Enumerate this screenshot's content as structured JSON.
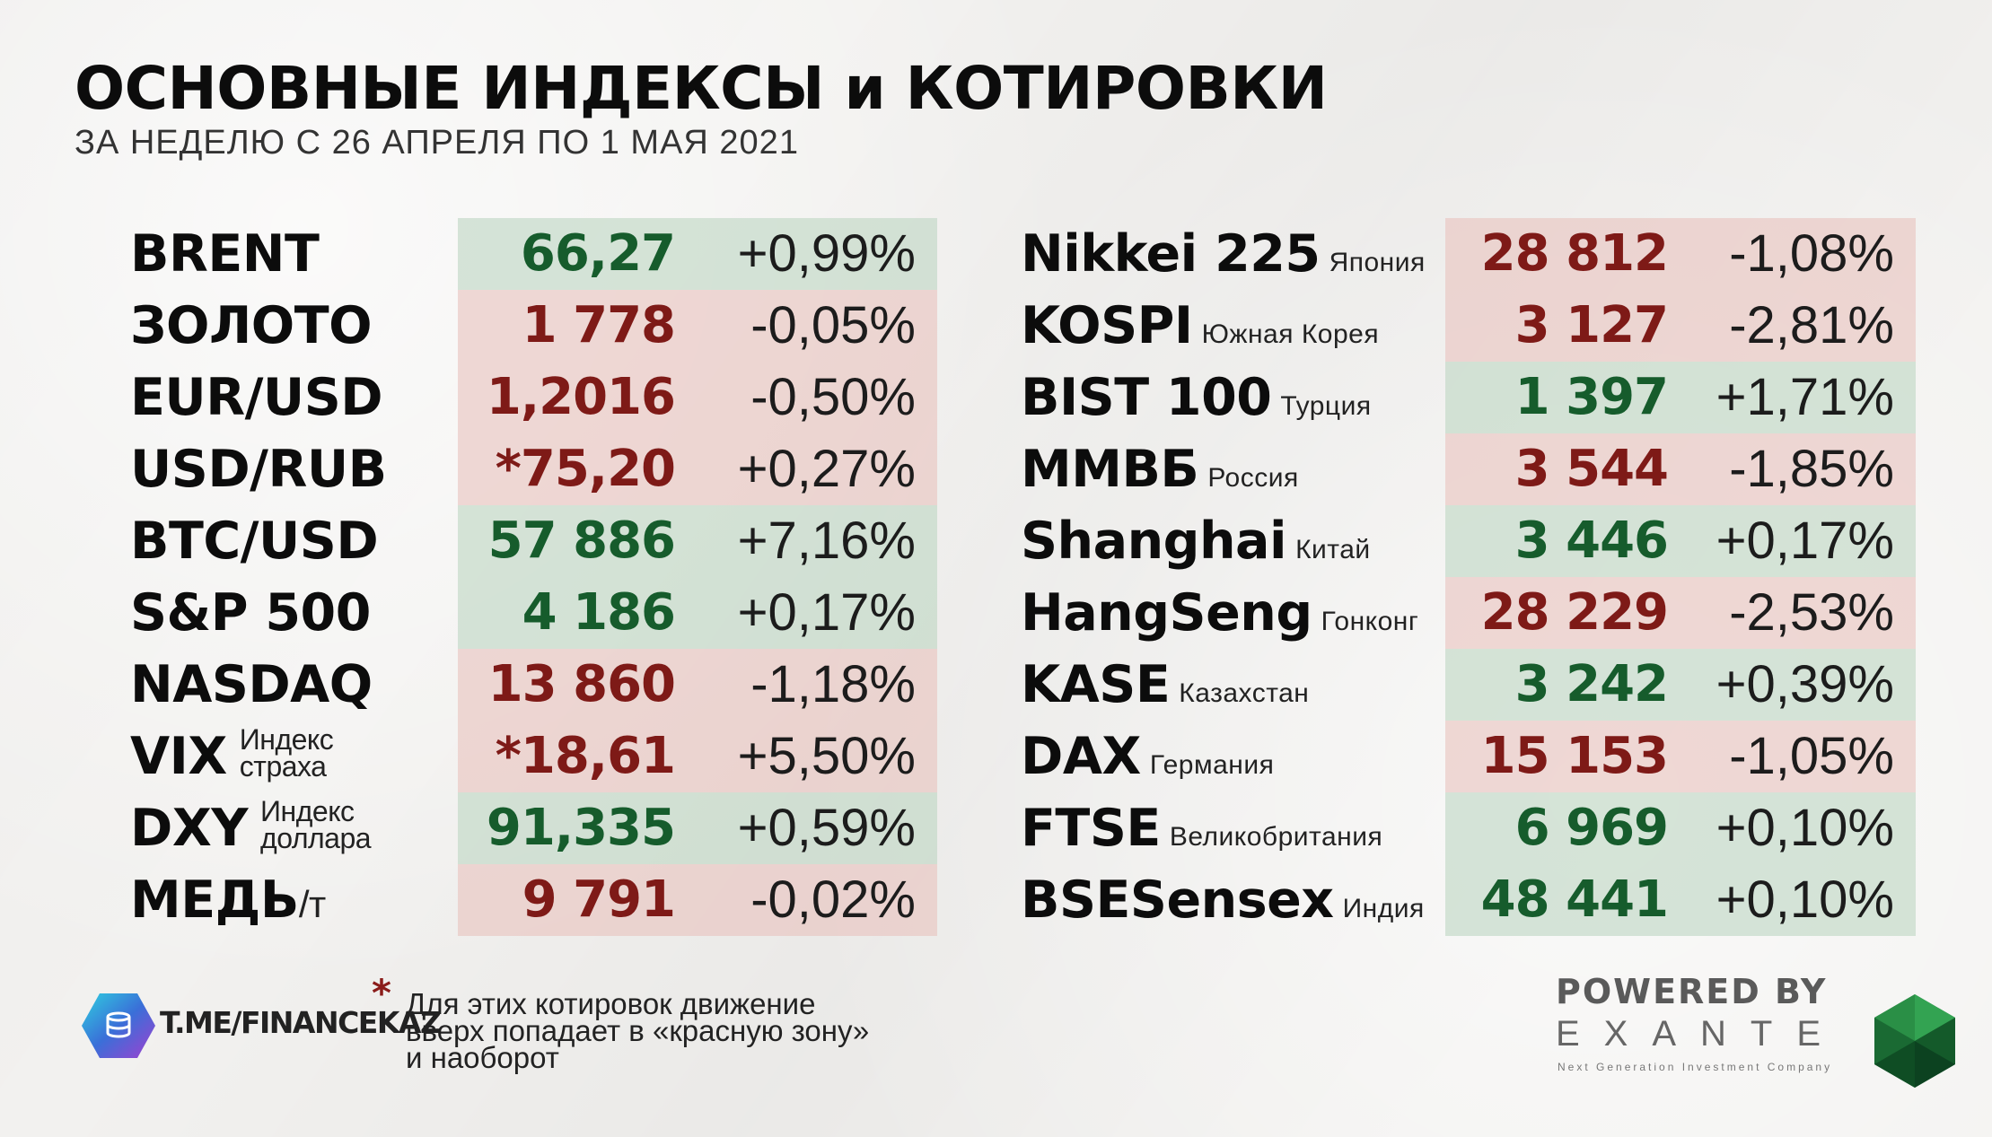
{
  "header": {
    "title": "ОСНОВНЫЕ ИНДЕКСЫ и КОТИРОВКИ",
    "subtitle": "ЗА НЕДЕЛЮ С 26 АПРЕЛЯ ПО 1 МАЯ 2021"
  },
  "colors": {
    "green_text": "#165c2c",
    "red_text": "#7e1a17",
    "green_bg": "#bed6c4",
    "red_bg": "#e9c4be"
  },
  "left": [
    {
      "name": "BRENT",
      "value": "66,27",
      "change": "+0,99%",
      "zone": "green"
    },
    {
      "name": "ЗОЛОТО",
      "value": "1 778",
      "change": "-0,05%",
      "zone": "red"
    },
    {
      "name": "EUR/USD",
      "value": "1,2016",
      "change": "-0,50%",
      "zone": "red"
    },
    {
      "name": "USD/RUB",
      "value": "*75,20",
      "change": "+0,27%",
      "zone": "red"
    },
    {
      "name": "BTC/USD",
      "value": "57 886",
      "change": "+7,16%",
      "zone": "green"
    },
    {
      "name": "S&P 500",
      "value": "4 186",
      "change": "+0,17%",
      "zone": "green"
    },
    {
      "name": "NASDAQ",
      "value": "13 860",
      "change": "-1,18%",
      "zone": "red"
    },
    {
      "name": "VIX",
      "sub_line1": "Индекс",
      "sub_line2": "страха",
      "value": "*18,61",
      "change": "+5,50%",
      "zone": "red"
    },
    {
      "name": "DXY",
      "sub_line1": "Индекс",
      "sub_line2": "доллара",
      "value": "91,335",
      "change": "+0,59%",
      "zone": "green"
    },
    {
      "name": "МЕДЬ",
      "unit": "/т",
      "value": "9 791",
      "change": "-0,02%",
      "zone": "red"
    }
  ],
  "right": [
    {
      "name": "Nikkei 225",
      "sub": "Япония",
      "value": "28 812",
      "change": "-1,08%",
      "zone": "red"
    },
    {
      "name": "KOSPI",
      "sub": "Южная Корея",
      "value": "3 127",
      "change": "-2,81%",
      "zone": "red"
    },
    {
      "name": "BIST 100",
      "sub": "Турция",
      "value": "1 397",
      "change": "+1,71%",
      "zone": "green"
    },
    {
      "name": "ММВБ",
      "sub": "Россия",
      "value": "3 544",
      "change": "-1,85%",
      "zone": "red"
    },
    {
      "name": "Shanghai",
      "sub": "Китай",
      "value": "3 446",
      "change": "+0,17%",
      "zone": "green"
    },
    {
      "name": "HangSeng",
      "sub": "Гонконг",
      "value": "28 229",
      "change": "-2,53%",
      "zone": "red"
    },
    {
      "name": "KASE",
      "sub": "Казахстан",
      "value": "3 242",
      "change": "+0,39%",
      "zone": "green"
    },
    {
      "name": "DAX",
      "sub": "Германия",
      "value": "15 153",
      "change": "-1,05%",
      "zone": "red"
    },
    {
      "name": "FTSE",
      "sub": "Великобритания",
      "value": "6 969",
      "change": "+0,10%",
      "zone": "green"
    },
    {
      "name": "BSESensex",
      "sub": "Индия",
      "value": "48 441",
      "change": "+0,10%",
      "zone": "green"
    }
  ],
  "footer": {
    "telegram": "T.ME/FINANCEKAZ",
    "footnote_star": "*",
    "footnote_line1": "Для этих котировок движение",
    "footnote_line2": "вверх попадает в «красную зону»",
    "footnote_line3": "и наоборот",
    "powered_by": "POWERED BY",
    "brand": "EXANTE",
    "brand_tagline": "Next Generation Investment Company"
  }
}
